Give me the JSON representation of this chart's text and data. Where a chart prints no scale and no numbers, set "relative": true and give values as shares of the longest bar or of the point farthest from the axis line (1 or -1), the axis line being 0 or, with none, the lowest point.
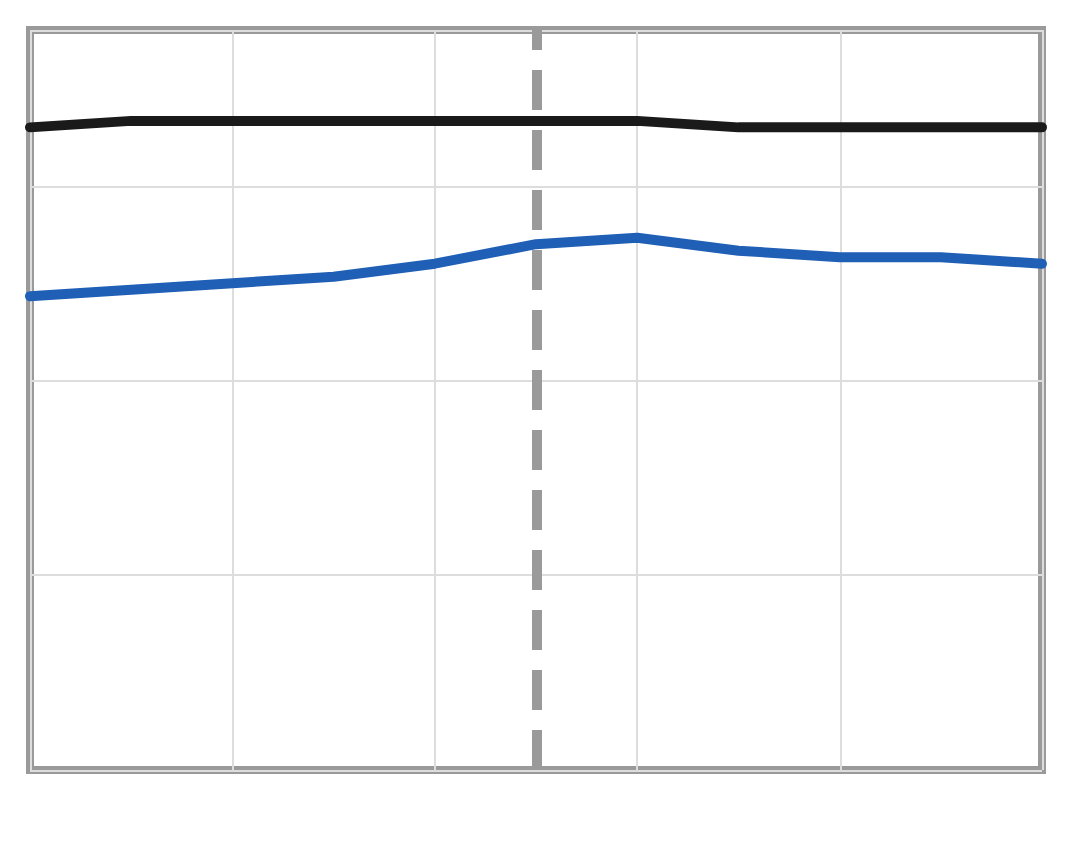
{
  "chart_data": {
    "type": "line",
    "relative": true,
    "grid": true,
    "line_style": "solid",
    "marker": "none",
    "categories": [
      null,
      null,
      null,
      null,
      null,
      null,
      null,
      null,
      null,
      null,
      null
    ],
    "series": [
      {
        "color": "#1a1a1a",
        "values": [
          0.99,
          1,
          1,
          1,
          1,
          1,
          1,
          0.99,
          0.99,
          0.99,
          0.99
        ]
      },
      {
        "color": "#1f5fb5",
        "values": [
          0.73,
          0.74,
          0.75,
          0.76,
          0.78,
          0.81,
          0.82,
          0.8,
          0.79,
          0.79,
          0.78
        ]
      }
    ]
  }
}
